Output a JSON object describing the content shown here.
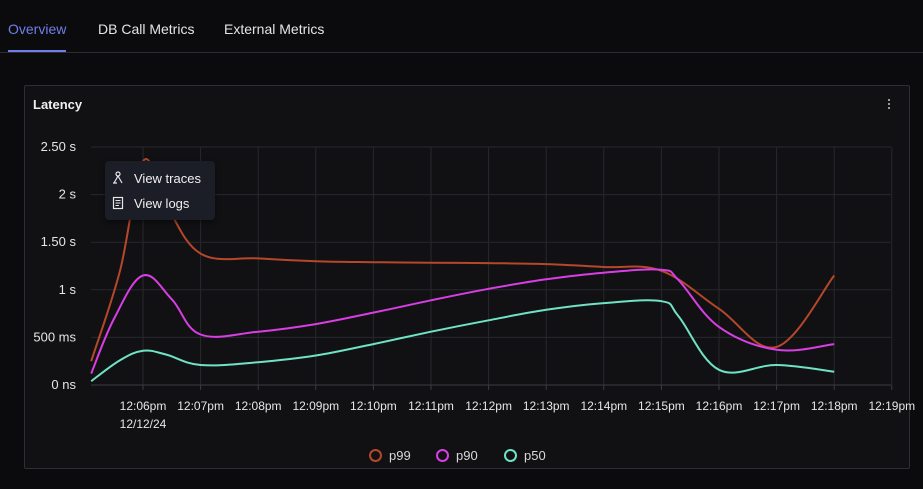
{
  "tabs": [
    {
      "label": "Overview",
      "active": true
    },
    {
      "label": "DB Call Metrics",
      "active": false
    },
    {
      "label": "External Metrics",
      "active": false
    }
  ],
  "panel": {
    "title": "Latency",
    "menu_icon": "kebab-menu-icon"
  },
  "context_menu": {
    "items": [
      {
        "label": "View traces",
        "icon": "traces-icon"
      },
      {
        "label": "View logs",
        "icon": "logs-icon"
      }
    ]
  },
  "legend": [
    {
      "label": "p99",
      "color": "#b5472a"
    },
    {
      "label": "p90",
      "color": "#d83ee3"
    },
    {
      "label": "p50",
      "color": "#6fe3c4"
    }
  ],
  "chart_data": {
    "type": "line",
    "y_tick_labels": [
      "2.50 s",
      "2 s",
      "1.50 s",
      "1 s",
      "500 ms",
      "0 ns"
    ],
    "y_tick_values_ms": [
      2500,
      2000,
      1500,
      1000,
      500,
      0
    ],
    "ylim_ms": [
      0,
      2500
    ],
    "x_tick_labels": [
      "12:06pm",
      "12:07pm",
      "12:08pm",
      "12:09pm",
      "12:10pm",
      "12:11pm",
      "12:12pm",
      "12:13pm",
      "12:14pm",
      "12:15pm",
      "12:16pm",
      "12:17pm",
      "12:18pm",
      "12:19pm"
    ],
    "x_date_label": "12/12/24",
    "x_minutes_range": [
      -0.9,
      13
    ],
    "grid": true,
    "legend_position": "bottom-center",
    "series": [
      {
        "name": "p99",
        "color": "#b5472a",
        "points": [
          [
            -0.9,
            250
          ],
          [
            -0.4,
            1200
          ],
          [
            0,
            2350
          ],
          [
            0.4,
            1900
          ],
          [
            1,
            1380
          ],
          [
            2,
            1330
          ],
          [
            3,
            1300
          ],
          [
            4,
            1290
          ],
          [
            5,
            1285
          ],
          [
            6,
            1280
          ],
          [
            7,
            1270
          ],
          [
            8,
            1240
          ],
          [
            9,
            1200
          ],
          [
            10,
            800
          ],
          [
            11,
            400
          ],
          [
            12,
            1150
          ]
        ]
      },
      {
        "name": "p90",
        "color": "#d83ee3",
        "points": [
          [
            -0.9,
            120
          ],
          [
            -0.5,
            700
          ],
          [
            0,
            1150
          ],
          [
            0.5,
            900
          ],
          [
            1,
            530
          ],
          [
            2,
            560
          ],
          [
            3,
            640
          ],
          [
            4,
            760
          ],
          [
            5,
            890
          ],
          [
            6,
            1010
          ],
          [
            7,
            1110
          ],
          [
            8,
            1180
          ],
          [
            9,
            1210
          ],
          [
            9.3,
            1100
          ],
          [
            10,
            610
          ],
          [
            11,
            370
          ],
          [
            12,
            430
          ]
        ]
      },
      {
        "name": "p50",
        "color": "#6fe3c4",
        "points": [
          [
            -0.9,
            40
          ],
          [
            -0.4,
            260
          ],
          [
            0,
            360
          ],
          [
            0.4,
            320
          ],
          [
            1,
            210
          ],
          [
            2,
            240
          ],
          [
            3,
            310
          ],
          [
            4,
            430
          ],
          [
            5,
            560
          ],
          [
            6,
            680
          ],
          [
            7,
            790
          ],
          [
            8,
            860
          ],
          [
            9,
            880
          ],
          [
            9.3,
            720
          ],
          [
            10,
            160
          ],
          [
            11,
            210
          ],
          [
            12,
            140
          ]
        ]
      }
    ]
  }
}
